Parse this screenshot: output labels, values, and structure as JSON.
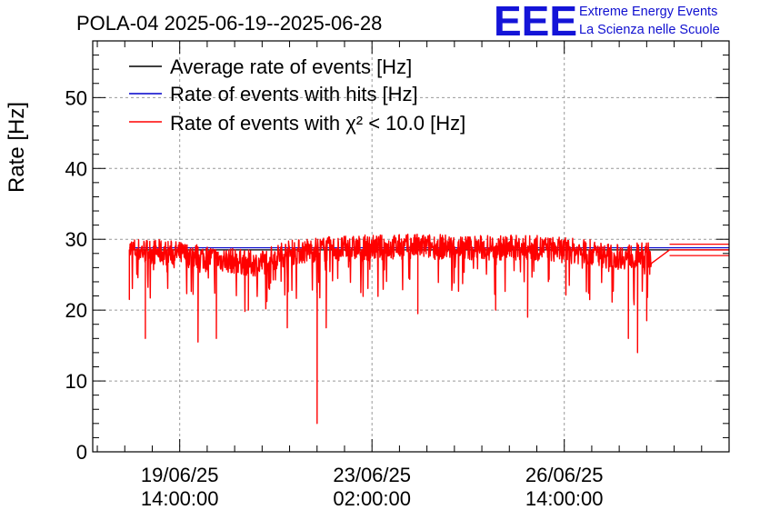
{
  "header": {
    "title": "POLA-04 2025-06-19--2025-06-28"
  },
  "logo": {
    "mark": "EEE",
    "line1": "Extreme Energy Events",
    "line2": "La Scienza nelle Scuole",
    "color": "#1414d8"
  },
  "chart_data": {
    "type": "line",
    "ylabel": "Rate [Hz]",
    "ylim": [
      0,
      58
    ],
    "yticks": [
      0,
      10,
      20,
      30,
      40,
      50
    ],
    "grid": true,
    "legend_position": "top-left",
    "xlim": [
      "2025-06-18 00:00",
      "2025-06-29 14:00"
    ],
    "xticks": [
      {
        "date": "19/06/25",
        "time": "14:00:00",
        "x": "2025-06-19 14:00"
      },
      {
        "date": "23/06/25",
        "time": "02:00:00",
        "x": "2025-06-23 02:00"
      },
      {
        "date": "26/06/25",
        "time": "14:00:00",
        "x": "2025-06-26 14:00"
      }
    ],
    "series": [
      {
        "name": "Average rate of events [Hz]",
        "color": "#000000",
        "values_summary": {
          "x_start": "2025-06-18 16:00",
          "x_end": "2025-06-29 14:00",
          "value": 28.5
        }
      },
      {
        "name": "Rate of events with hits [Hz]",
        "color": "#0000cc",
        "values_summary": {
          "x_start": "2025-06-18 16:00",
          "x_end": "2025-06-29 14:00",
          "value": 28.8
        }
      },
      {
        "name": "Rate of events with χ² < 10.0 [Hz]",
        "color": "#ff0000",
        "segments": [
          {
            "x": "2025-06-18 16:00",
            "y": 28.5
          },
          {
            "x": "2025-06-19 12:00",
            "y": 28.0
          },
          {
            "x": "2025-06-20 12:00",
            "y": 27.0
          },
          {
            "x": "2025-06-21 00:00",
            "y": 26.5
          },
          {
            "x": "2025-06-21 12:00",
            "y": 28.0
          },
          {
            "x": "2025-06-22 00:00",
            "y": 28.5
          },
          {
            "x": "2025-06-23 00:00",
            "y": 28.8
          },
          {
            "x": "2025-06-24 00:00",
            "y": 29.0
          },
          {
            "x": "2025-06-25 00:00",
            "y": 28.8
          },
          {
            "x": "2025-06-26 00:00",
            "y": 28.8
          },
          {
            "x": "2025-06-27 00:00",
            "y": 28.2
          },
          {
            "x": "2025-06-27 12:00",
            "y": 27.5
          },
          {
            "x": "2025-06-28 04:00",
            "y": 27.8
          }
        ],
        "notable_dips": [
          {
            "x": "2025-06-18 16:00",
            "y": 21.5
          },
          {
            "x": "2025-06-18 23:00",
            "y": 16.0
          },
          {
            "x": "2025-06-19 22:00",
            "y": 15.5
          },
          {
            "x": "2025-06-20 06:00",
            "y": 16.0
          },
          {
            "x": "2025-06-20 20:00",
            "y": 20.0
          },
          {
            "x": "2025-06-21 13:00",
            "y": 17.5
          },
          {
            "x": "2025-06-22 02:00",
            "y": 4.0
          },
          {
            "x": "2025-06-22 06:00",
            "y": 17.5
          },
          {
            "x": "2025-06-23 22:00",
            "y": 19.5
          },
          {
            "x": "2025-06-25 08:00",
            "y": 20.0
          },
          {
            "x": "2025-06-25 22:00",
            "y": 19.0
          },
          {
            "x": "2025-06-27 18:00",
            "y": 16.0
          },
          {
            "x": "2025-06-27 22:00",
            "y": 14.0
          },
          {
            "x": "2025-06-28 02:00",
            "y": 18.5
          },
          {
            "x": "2025-06-28 10:00",
            "y": 19.5
          }
        ],
        "flat_tail": {
          "x_start": "2025-06-28 12:00",
          "x_end": "2025-06-29 14:00",
          "y": 28.5
        }
      }
    ]
  }
}
